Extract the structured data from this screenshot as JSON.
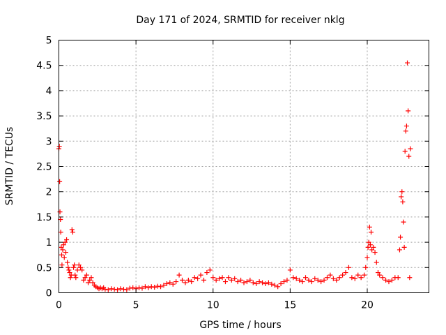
{
  "chart_data": {
    "type": "scatter",
    "title": "Day 171 of 2024, SRMTID for receiver nklg",
    "xlabel": "GPS time / hours",
    "ylabel": "SRMTID / TECUs",
    "xlim": [
      0,
      24
    ],
    "ylim": [
      0,
      5
    ],
    "xticks": [
      0,
      5,
      10,
      15,
      20
    ],
    "xtick_labels": [
      "0",
      "5",
      "10",
      "15",
      "20"
    ],
    "yticks": [
      0,
      0.5,
      1,
      1.5,
      2,
      2.5,
      3,
      3.5,
      4,
      4.5,
      5
    ],
    "ytick_labels": [
      "0",
      "0.5",
      "1",
      "1.5",
      "2",
      "2.5",
      "3",
      "3.5",
      "4",
      "4.5",
      "5"
    ],
    "grid": true,
    "marker": "plus",
    "series": [
      {
        "name": "SRMTID",
        "color": "#ff0000",
        "x": [
          0.0,
          0.03,
          0.05,
          0.07,
          0.1,
          0.12,
          0.15,
          0.18,
          0.2,
          0.25,
          0.3,
          0.35,
          0.4,
          0.45,
          0.5,
          0.55,
          0.6,
          0.65,
          0.7,
          0.75,
          0.8,
          0.85,
          0.9,
          0.95,
          1.0,
          1.05,
          1.1,
          1.2,
          1.3,
          1.4,
          1.5,
          1.6,
          1.7,
          1.8,
          1.9,
          2.0,
          2.1,
          2.2,
          2.3,
          2.4,
          2.5,
          2.6,
          2.7,
          2.8,
          2.9,
          3.0,
          3.2,
          3.4,
          3.6,
          3.8,
          4.0,
          4.2,
          4.4,
          4.6,
          4.8,
          5.0,
          5.2,
          5.4,
          5.6,
          5.8,
          6.0,
          6.2,
          6.4,
          6.6,
          6.8,
          7.0,
          7.2,
          7.4,
          7.6,
          7.8,
          8.0,
          8.2,
          8.4,
          8.6,
          8.8,
          9.0,
          9.2,
          9.4,
          9.6,
          9.8,
          10.0,
          10.2,
          10.4,
          10.6,
          10.8,
          11.0,
          11.2,
          11.4,
          11.6,
          11.8,
          12.0,
          12.2,
          12.4,
          12.6,
          12.8,
          13.0,
          13.2,
          13.4,
          13.6,
          13.8,
          14.0,
          14.2,
          14.4,
          14.6,
          14.8,
          15.0,
          15.2,
          15.4,
          15.6,
          15.8,
          16.0,
          16.2,
          16.4,
          16.6,
          16.8,
          17.0,
          17.2,
          17.4,
          17.6,
          17.8,
          18.0,
          18.2,
          18.4,
          18.6,
          18.8,
          19.0,
          19.2,
          19.4,
          19.6,
          19.8,
          19.9,
          20.0,
          20.05,
          20.1,
          20.15,
          20.2,
          20.25,
          20.3,
          20.4,
          20.5,
          20.6,
          20.7,
          20.8,
          21.0,
          21.2,
          21.4,
          21.6,
          21.8,
          22.0,
          22.1,
          22.15,
          22.2,
          22.25,
          22.3,
          22.35,
          22.4,
          22.45,
          22.5,
          22.55,
          22.6,
          22.65,
          22.7,
          22.75,
          22.8
        ],
        "y": [
          2.85,
          2.9,
          2.2,
          1.6,
          1.45,
          1.2,
          0.9,
          0.75,
          0.55,
          0.85,
          0.95,
          0.7,
          1.0,
          0.8,
          1.05,
          0.6,
          0.5,
          0.45,
          0.4,
          0.3,
          0.35,
          1.25,
          1.2,
          0.5,
          0.55,
          0.35,
          0.3,
          0.45,
          0.55,
          0.5,
          0.45,
          0.25,
          0.3,
          0.35,
          0.2,
          0.25,
          0.3,
          0.2,
          0.15,
          0.12,
          0.1,
          0.08,
          0.1,
          0.08,
          0.1,
          0.07,
          0.06,
          0.08,
          0.07,
          0.06,
          0.08,
          0.07,
          0.06,
          0.09,
          0.1,
          0.08,
          0.1,
          0.09,
          0.12,
          0.1,
          0.12,
          0.11,
          0.13,
          0.12,
          0.15,
          0.18,
          0.2,
          0.17,
          0.22,
          0.35,
          0.25,
          0.2,
          0.25,
          0.22,
          0.3,
          0.28,
          0.35,
          0.25,
          0.4,
          0.45,
          0.3,
          0.25,
          0.28,
          0.3,
          0.22,
          0.3,
          0.25,
          0.28,
          0.22,
          0.25,
          0.2,
          0.22,
          0.25,
          0.2,
          0.18,
          0.22,
          0.2,
          0.18,
          0.2,
          0.17,
          0.15,
          0.12,
          0.18,
          0.22,
          0.25,
          0.45,
          0.3,
          0.28,
          0.25,
          0.22,
          0.3,
          0.25,
          0.22,
          0.28,
          0.25,
          0.22,
          0.25,
          0.3,
          0.35,
          0.28,
          0.25,
          0.3,
          0.35,
          0.4,
          0.5,
          0.3,
          0.28,
          0.35,
          0.3,
          0.35,
          0.5,
          0.7,
          0.9,
          1.0,
          1.3,
          0.95,
          1.2,
          0.85,
          0.9,
          0.8,
          0.6,
          0.4,
          0.35,
          0.3,
          0.25,
          0.22,
          0.25,
          0.3,
          0.3,
          0.85,
          1.1,
          1.9,
          2.0,
          1.8,
          1.4,
          0.9,
          2.8,
          3.2,
          3.3,
          4.55,
          3.6,
          2.7,
          0.3,
          2.85
        ]
      }
    ]
  }
}
